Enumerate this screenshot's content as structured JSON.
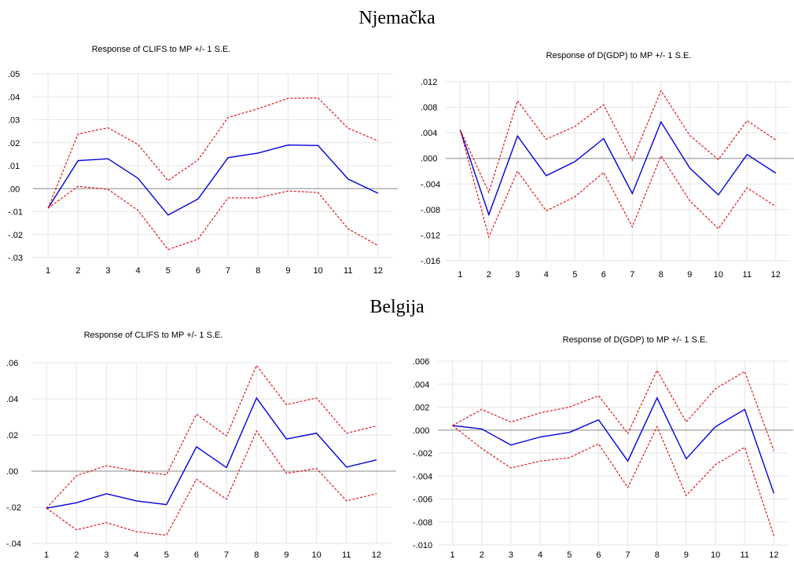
{
  "headings": {
    "top": "Njemačka",
    "bottom": "Belgija"
  },
  "colors": {
    "response": "#0000dd",
    "band": "#e0141e",
    "zero_line": "#a0a0a0",
    "grid": "#e6e6e6"
  },
  "chart_data": [
    {
      "type": "line",
      "title": "Response of CLIFS to MP +/- 1 S.E.",
      "x": [
        1,
        2,
        3,
        4,
        5,
        6,
        7,
        8,
        9,
        10,
        11,
        12
      ],
      "ylim": [
        -0.03,
        0.05
      ],
      "yticks": [
        ".05",
        ".04",
        ".03",
        ".02",
        ".01",
        ".00",
        "-.01",
        "-.02",
        "-.03"
      ],
      "grid": true,
      "series": [
        {
          "role": "response",
          "values": [
            -0.0085,
            0.0122,
            0.013,
            0.0045,
            -0.0115,
            -0.0045,
            0.0135,
            0.0155,
            0.019,
            0.0188,
            0.0042,
            -0.002
          ]
        },
        {
          "role": "upper",
          "values": [
            -0.0085,
            0.0238,
            0.0265,
            0.0192,
            0.0035,
            0.0125,
            0.031,
            0.0348,
            0.0393,
            0.0395,
            0.0263,
            0.0208
          ]
        },
        {
          "role": "lower",
          "values": [
            -0.0085,
            0.001,
            -0.0003,
            -0.0095,
            -0.0265,
            -0.022,
            -0.004,
            -0.004,
            -0.001,
            -0.0017,
            -0.0175,
            -0.0248
          ]
        }
      ]
    },
    {
      "type": "line",
      "title": "Response of D(GDP) to MP +/- 1 S.E.",
      "x": [
        1,
        2,
        3,
        4,
        5,
        6,
        7,
        8,
        9,
        10,
        11,
        12
      ],
      "ylim": [
        -0.016,
        0.012
      ],
      "yticks": [
        ".012",
        ".008",
        ".004",
        ".000",
        "-.004",
        "-.008",
        "-.012",
        "-.016"
      ],
      "grid": true,
      "series": [
        {
          "role": "response",
          "values": [
            0.0045,
            -0.0088,
            0.0035,
            -0.0027,
            -0.0005,
            0.0031,
            -0.0055,
            0.0057,
            -0.0015,
            -0.0057,
            0.0006,
            -0.0023
          ]
        },
        {
          "role": "upper",
          "values": [
            0.0045,
            -0.0053,
            0.009,
            0.003,
            0.005,
            0.0084,
            -0.0003,
            0.0106,
            0.0036,
            -0.0002,
            0.0059,
            0.0029
          ]
        },
        {
          "role": "lower",
          "values": [
            0.0045,
            -0.0123,
            -0.002,
            -0.0082,
            -0.006,
            -0.0022,
            -0.0107,
            0.0004,
            -0.0066,
            -0.011,
            -0.0046,
            -0.0075
          ]
        }
      ]
    },
    {
      "type": "line",
      "title": "Response of CLIFS to MP +/- 1 S.E.",
      "x": [
        1,
        2,
        3,
        4,
        5,
        6,
        7,
        8,
        9,
        10,
        11,
        12
      ],
      "ylim": [
        -0.04,
        0.06
      ],
      "yticks": [
        ".06",
        ".04",
        ".02",
        ".00",
        "-.02",
        "-.04"
      ],
      "grid": true,
      "series": [
        {
          "role": "response",
          "values": [
            -0.0205,
            -0.0175,
            -0.0125,
            -0.0165,
            -0.0185,
            0.0135,
            0.002,
            0.0405,
            0.0178,
            0.021,
            0.0022,
            0.0062
          ]
        },
        {
          "role": "upper",
          "values": [
            -0.0205,
            -0.0025,
            0.003,
            0.0,
            -0.002,
            0.0315,
            0.0195,
            0.0585,
            0.0368,
            0.0405,
            0.021,
            0.025
          ]
        },
        {
          "role": "lower",
          "values": [
            -0.0205,
            -0.0325,
            -0.0285,
            -0.0335,
            -0.0355,
            -0.0045,
            -0.0155,
            0.0222,
            -0.0012,
            0.0015,
            -0.0165,
            -0.0125
          ]
        }
      ]
    },
    {
      "type": "line",
      "title": "Response of D(GDP) to MP +/- 1 S.E.",
      "x": [
        1,
        2,
        3,
        4,
        5,
        6,
        7,
        8,
        9,
        10,
        11,
        12
      ],
      "ylim": [
        -0.01,
        0.006
      ],
      "yticks": [
        ".006",
        ".004",
        ".002",
        ".000",
        "-.002",
        "-.004",
        "-.006",
        "-.008",
        "-.010"
      ],
      "grid": true,
      "series": [
        {
          "role": "response",
          "values": [
            0.0004,
            0.0001,
            -0.0013,
            -0.0006,
            -0.0002,
            0.0009,
            -0.0027,
            0.0028,
            -0.0025,
            0.0003,
            0.0018,
            -0.0055
          ]
        },
        {
          "role": "upper",
          "values": [
            0.0004,
            0.0018,
            0.0007,
            0.0015,
            0.002,
            0.003,
            -0.0003,
            0.0052,
            0.0007,
            0.0036,
            0.0051,
            -0.0018
          ]
        },
        {
          "role": "lower",
          "values": [
            0.0004,
            -0.0016,
            -0.0033,
            -0.0027,
            -0.0024,
            -0.0012,
            -0.005,
            0.0003,
            -0.0057,
            -0.003,
            -0.0015,
            -0.0092
          ]
        }
      ]
    }
  ]
}
